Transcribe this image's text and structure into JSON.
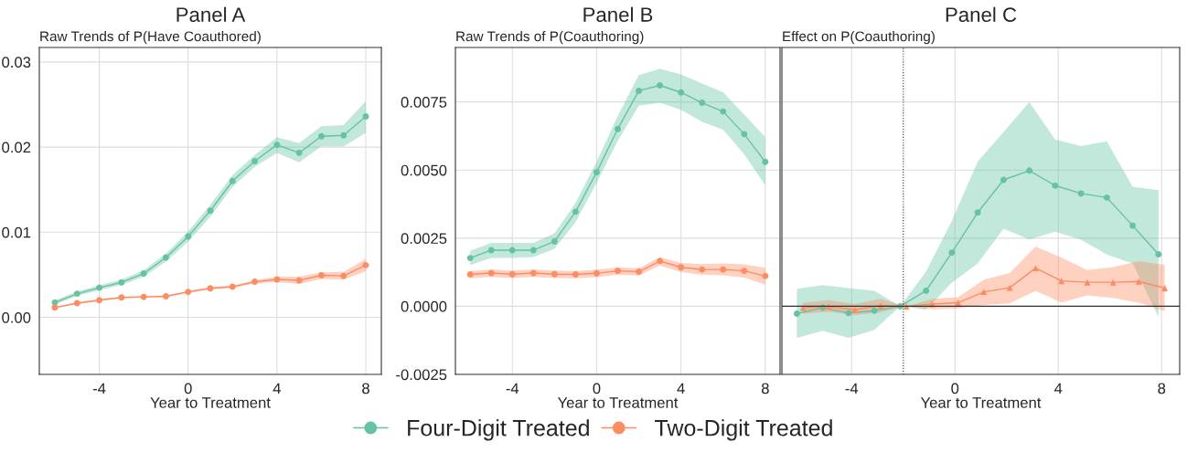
{
  "chart_data": [
    {
      "type": "line",
      "title": "Panel A",
      "subtitle": "Raw Trends of P(Have Coauthored)",
      "xlabel": "Year to Treatment",
      "xlim": [
        -6.7,
        8.7
      ],
      "xticks": [
        -4,
        0,
        4,
        8
      ],
      "ylim": [
        -0.0067,
        0.0317
      ],
      "yticks": [
        {
          "value": 0,
          "label": "0.00"
        },
        {
          "value": 0.01,
          "label": "0.01"
        },
        {
          "value": 0.02,
          "label": "0.02"
        },
        {
          "value": 0.03,
          "label": "0.03"
        }
      ],
      "grid": true,
      "legend": "bottom",
      "series": [
        {
          "name": "Four-Digit Treated",
          "color": "#66c2a5",
          "marker": "circle",
          "x": [
            -6,
            -5,
            -4,
            -3,
            -2,
            -1,
            0,
            1,
            2,
            3,
            4,
            5,
            6,
            7,
            8
          ],
          "values": [
            0.00174,
            0.00278,
            0.00348,
            0.00411,
            0.00515,
            0.00703,
            0.0095,
            0.01253,
            0.01601,
            0.01834,
            0.02026,
            0.01932,
            0.02127,
            0.02137,
            0.0236
          ],
          "lower": [
            0.0015,
            0.0025,
            0.0032,
            0.0038,
            0.00477,
            0.00655,
            0.00887,
            0.01184,
            0.01531,
            0.01768,
            0.01932,
            0.0182,
            0.02008,
            0.02005,
            0.02168
          ],
          "upper": [
            0.00198,
            0.00303,
            0.00376,
            0.00442,
            0.00553,
            0.00749,
            0.01009,
            0.01323,
            0.0167,
            0.01907,
            0.02116,
            0.02047,
            0.02245,
            0.02259,
            0.02541
          ]
        },
        {
          "name": "Two-Digit Treated",
          "color": "#fc8d62",
          "marker": "circle",
          "x": [
            -6,
            -5,
            -4,
            -3,
            -2,
            -1,
            0,
            1,
            2,
            3,
            4,
            5,
            6,
            7,
            8
          ],
          "values": [
            0.00115,
            0.00167,
            0.00202,
            0.00233,
            0.0024,
            0.00247,
            0.00299,
            0.00341,
            0.00359,
            0.00418,
            0.00446,
            0.00435,
            0.00494,
            0.00487,
            0.00613
          ],
          "lower": [
            0.00105,
            0.00157,
            0.00192,
            0.00223,
            0.0023,
            0.00235,
            0.00287,
            0.00328,
            0.00345,
            0.00398,
            0.00414,
            0.00393,
            0.00452,
            0.00442,
            0.0054
          ],
          "upper": [
            0.00125,
            0.00177,
            0.00212,
            0.00243,
            0.0025,
            0.00259,
            0.00311,
            0.00354,
            0.00373,
            0.00438,
            0.00477,
            0.00477,
            0.00529,
            0.00533,
            0.00686
          ]
        }
      ]
    },
    {
      "type": "line",
      "title": "Panel B",
      "subtitle": "Raw Trends of P(Coauthoring)",
      "xlabel": "Year to Treatment",
      "xlim": [
        -6.7,
        8.7
      ],
      "xticks": [
        -4,
        0,
        4,
        8
      ],
      "ylim": [
        -0.0025,
        0.0095
      ],
      "yticks": [
        {
          "value": -0.0025,
          "label": "-0.0025"
        },
        {
          "value": 0,
          "label": "0.0000"
        },
        {
          "value": 0.0025,
          "label": "0.0025"
        },
        {
          "value": 0.005,
          "label": "0.0050"
        },
        {
          "value": 0.0075,
          "label": "0.0075"
        }
      ],
      "grid": true,
      "legend": "bottom",
      "series": [
        {
          "name": "Four-Digit Treated",
          "color": "#66c2a5",
          "marker": "circle",
          "x": [
            -6,
            -5,
            -4,
            -3,
            -2,
            -1,
            0,
            1,
            2,
            3,
            4,
            5,
            6,
            7,
            8
          ],
          "values": [
            0.00177,
            0.00206,
            0.00206,
            0.00206,
            0.00238,
            0.00347,
            0.00492,
            0.00651,
            0.00791,
            0.00811,
            0.00785,
            0.00747,
            0.00715,
            0.00632,
            0.0053
          ],
          "lower": [
            0.00151,
            0.00177,
            0.00177,
            0.00181,
            0.00211,
            0.00309,
            0.00453,
            0.00607,
            0.00736,
            0.00747,
            0.00721,
            0.00677,
            0.00648,
            0.00558,
            0.00444
          ],
          "upper": [
            0.00203,
            0.00233,
            0.00233,
            0.00233,
            0.00268,
            0.00379,
            0.00531,
            0.00699,
            0.00849,
            0.00872,
            0.00851,
            0.00818,
            0.00786,
            0.00704,
            0.00621
          ]
        },
        {
          "name": "Two-Digit Treated",
          "color": "#fc8d62",
          "marker": "circle",
          "x": [
            -6,
            -5,
            -4,
            -3,
            -2,
            -1,
            0,
            1,
            2,
            3,
            4,
            5,
            6,
            7,
            8
          ],
          "values": [
            0.00117,
            0.00122,
            0.00118,
            0.00122,
            0.00118,
            0.00117,
            0.00121,
            0.0013,
            0.00127,
            0.00166,
            0.00143,
            0.00135,
            0.00135,
            0.0013,
            0.00111
          ],
          "lower": [
            0.00103,
            0.00108,
            0.00104,
            0.00108,
            0.00104,
            0.00103,
            0.00107,
            0.00116,
            0.00113,
            0.0015,
            0.00125,
            0.00116,
            0.00114,
            0.00105,
            0.00079
          ],
          "upper": [
            0.0013,
            0.00135,
            0.00131,
            0.00135,
            0.00131,
            0.0013,
            0.00134,
            0.00143,
            0.0014,
            0.00181,
            0.00159,
            0.00155,
            0.00157,
            0.00154,
            0.00141
          ]
        }
      ]
    },
    {
      "type": "line",
      "title": "Panel C",
      "subtitle": "Effect on P(Coauthoring)",
      "xlabel": "Year to Treatment",
      "xlim": [
        -6.7,
        8.7
      ],
      "xticks": [
        -4,
        0,
        4,
        8
      ],
      "ylim": [
        -0.0025,
        0.0095
      ],
      "yticks": [
        -0.0025,
        0,
        0.0025,
        0.005,
        0.0075
      ],
      "tick_labels": "x",
      "grid": true,
      "legend": "bottom",
      "ref_lines": [
        {
          "axis": "x",
          "value": -2,
          "line_style": "dotted",
          "color": "#333333"
        },
        {
          "axis": "y",
          "value": 0,
          "line_style": "solid",
          "color": "#333333"
        }
      ],
      "series": [
        {
          "name": "Four-Digit Treated",
          "color": "#66c2a5",
          "marker": "circle",
          "x": [
            -6.12,
            -5.12,
            -4.12,
            -3.12,
            -2.12,
            -1.12,
            -0.12,
            0.88,
            1.88,
            2.88,
            3.88,
            4.88,
            5.88,
            6.88,
            7.88
          ],
          "values": [
            -0.00027,
            -5e-05,
            -0.00025,
            -0.00016,
            0,
            0.00057,
            0.00197,
            0.00344,
            0.00464,
            0.00498,
            0.00443,
            0.00414,
            0.00399,
            0.00296,
            0.00191
          ],
          "lower": [
            -0.00116,
            -0.0009,
            -0.00116,
            -0.00087,
            0,
            -0.00013,
            0.00087,
            0.00157,
            0.00285,
            0.00245,
            0.00274,
            0.00244,
            0.0019,
            0.00157,
            -0.0004
          ],
          "upper": [
            0.00064,
            0.00078,
            0.00067,
            0.00057,
            0,
            0.00127,
            0.00314,
            0.00531,
            0.00639,
            0.0075,
            0.00612,
            0.00588,
            0.00606,
            0.00439,
            0.00426
          ]
        },
        {
          "name": "Two-Digit Treated",
          "color": "#fc8d62",
          "marker": "triangle",
          "x": [
            -5.88,
            -4.88,
            -3.88,
            -2.88,
            -1.88,
            -0.88,
            0.12,
            1.12,
            2.12,
            3.12,
            4.12,
            5.12,
            6.12,
            7.12,
            8.12
          ],
          "values": [
            -5e-05,
            -1e-05,
            -0.00013,
            3e-05,
            0,
            8e-05,
            0.00013,
            0.00053,
            0.00068,
            0.0014,
            0.00093,
            0.00088,
            0.00088,
            0.00091,
            0.00067
          ],
          "lower": [
            -0.00027,
            -0.0002,
            -0.00033,
            -0.00022,
            0,
            -0.00011,
            -8e-05,
            5e-05,
            0.00011,
            0.00057,
            0.00014,
            0.0004,
            0.00031,
            0.00013,
            -0.00018
          ],
          "upper": [
            0.00013,
            0.00022,
            8e-05,
            0.00027,
            0,
            0.00027,
            0.00033,
            0.00098,
            0.00122,
            0.00219,
            0.00179,
            0.00133,
            0.00144,
            0.00166,
            0.00152
          ]
        }
      ]
    }
  ]
}
